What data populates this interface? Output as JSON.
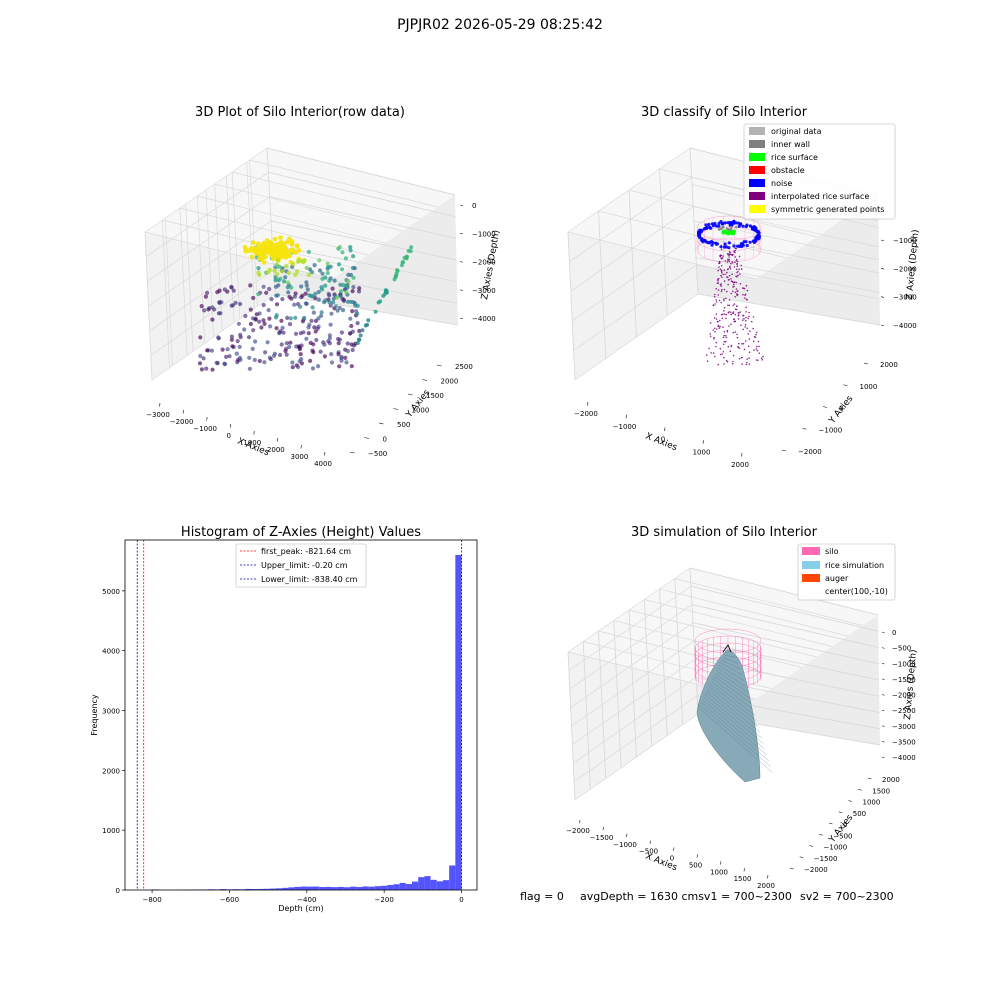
{
  "figure": {
    "title": "PJPJR02 2026-05-29 08:25:42",
    "footer": {
      "flag": "flag = 0",
      "avg": "avgDepth = 1630 cmsv1 = 700~2300",
      "sv2": "sv2 = 700~2300"
    }
  },
  "colors": {
    "hist_bar": "#4b4bff",
    "first_peak": "#ff0000",
    "limit_line": "#0000aa",
    "silo": "#ff69b4",
    "rice": "#87a9b8",
    "auger": "#ff4500",
    "noise": "#0000ff",
    "original": "#b3b3b3",
    "inner_wall": "#808080",
    "rice_surface": "#00ff00",
    "obstacle": "#ff0000",
    "interp": "#800080",
    "sym": "#ffff00"
  },
  "chart_data": [
    {
      "type": "scatter",
      "title": "3D Plot of Silo Interior(row data)",
      "xlabel": "X Axies",
      "ylabel": "Y Axies",
      "zlabel": "Z Axies (Depth)",
      "x_ticks": [
        "−3000",
        "−2000",
        "−1000",
        "0",
        "1000",
        "2000",
        "3000",
        "4000"
      ],
      "y_ticks": [
        "−500",
        "0",
        "500",
        "1000",
        "1500",
        "2000",
        "2500"
      ],
      "z_ticks": [
        "0",
        "−1000",
        "−2000",
        "−3000",
        "−4000"
      ],
      "xlim": [
        -3500,
        4500
      ],
      "ylim": [
        -700,
        2800
      ],
      "zlim": [
        -4500,
        200
      ],
      "colormap": "viridis"
    },
    {
      "type": "scatter",
      "title": "3D classify of Silo Interior",
      "xlabel": "X Axies",
      "ylabel": "Y Axies",
      "zlabel": "Z Axies (Depth)",
      "x_ticks": [
        "−2000",
        "−1000",
        "0",
        "1000",
        "2000"
      ],
      "y_ticks": [
        "−2000",
        "−1000",
        "0",
        "1000",
        "2000"
      ],
      "z_ticks": [
        "−1000",
        "−2000",
        "−3000",
        "−4000"
      ],
      "legend": [
        "original data",
        "inner wall",
        "rice surface",
        "obstacle",
        "noise",
        "interpolated rice surface",
        "symmetric generated points"
      ],
      "legend_position": "top-right"
    },
    {
      "type": "bar",
      "title": "Histogram of Z-Axies (Height) Values",
      "xlabel": "Depth (cm)",
      "ylabel": "Frequency",
      "xlim": [
        -870,
        40
      ],
      "ylim": [
        0,
        5850
      ],
      "x_ticks": [
        "−800",
        "−600",
        "−400",
        "−200",
        "0"
      ],
      "y_ticks": [
        "0",
        "1000",
        "2000",
        "3000",
        "4000",
        "5000"
      ],
      "legend": [
        "first_peak: -821.64 cm",
        "Upper_limit: -0.20 cm",
        "Lower_limit: -838.40 cm"
      ],
      "legend_position": "top-center",
      "vlines": {
        "first_peak": -821.64,
        "upper_limit": -0.2,
        "lower_limit": -838.4
      },
      "bins": [
        {
          "x": -800,
          "w": 16,
          "v": 10
        },
        {
          "x": -736,
          "w": 16,
          "v": 6
        },
        {
          "x": -720,
          "w": 16,
          "v": 6
        },
        {
          "x": -704,
          "w": 16,
          "v": 6
        },
        {
          "x": -688,
          "w": 16,
          "v": 8
        },
        {
          "x": -672,
          "w": 16,
          "v": 8
        },
        {
          "x": -656,
          "w": 16,
          "v": 12
        },
        {
          "x": -640,
          "w": 16,
          "v": 10
        },
        {
          "x": -624,
          "w": 16,
          "v": 16
        },
        {
          "x": -608,
          "w": 16,
          "v": 10
        },
        {
          "x": -592,
          "w": 16,
          "v": 14
        },
        {
          "x": -576,
          "w": 16,
          "v": 12
        },
        {
          "x": -560,
          "w": 16,
          "v": 18
        },
        {
          "x": -544,
          "w": 16,
          "v": 16
        },
        {
          "x": -528,
          "w": 16,
          "v": 18
        },
        {
          "x": -512,
          "w": 16,
          "v": 20
        },
        {
          "x": -496,
          "w": 16,
          "v": 24
        },
        {
          "x": -480,
          "w": 16,
          "v": 28
        },
        {
          "x": -464,
          "w": 16,
          "v": 36
        },
        {
          "x": -448,
          "w": 16,
          "v": 44
        },
        {
          "x": -432,
          "w": 16,
          "v": 52
        },
        {
          "x": -416,
          "w": 16,
          "v": 58
        },
        {
          "x": -400,
          "w": 16,
          "v": 56
        },
        {
          "x": -384,
          "w": 16,
          "v": 58
        },
        {
          "x": -368,
          "w": 16,
          "v": 50
        },
        {
          "x": -352,
          "w": 16,
          "v": 52
        },
        {
          "x": -336,
          "w": 16,
          "v": 48
        },
        {
          "x": -320,
          "w": 16,
          "v": 52
        },
        {
          "x": -304,
          "w": 16,
          "v": 46
        },
        {
          "x": -288,
          "w": 16,
          "v": 56
        },
        {
          "x": -272,
          "w": 16,
          "v": 50
        },
        {
          "x": -256,
          "w": 16,
          "v": 60
        },
        {
          "x": -240,
          "w": 16,
          "v": 56
        },
        {
          "x": -224,
          "w": 16,
          "v": 64
        },
        {
          "x": -208,
          "w": 16,
          "v": 70
        },
        {
          "x": -192,
          "w": 16,
          "v": 84
        },
        {
          "x": -176,
          "w": 16,
          "v": 96
        },
        {
          "x": -160,
          "w": 16,
          "v": 118
        },
        {
          "x": -144,
          "w": 16,
          "v": 100
        },
        {
          "x": -128,
          "w": 16,
          "v": 140
        },
        {
          "x": -112,
          "w": 16,
          "v": 215
        },
        {
          "x": -96,
          "w": 16,
          "v": 232
        },
        {
          "x": -80,
          "w": 16,
          "v": 170
        },
        {
          "x": -64,
          "w": 16,
          "v": 145
        },
        {
          "x": -48,
          "w": 16,
          "v": 165
        },
        {
          "x": -32,
          "w": 16,
          "v": 410
        },
        {
          "x": -16,
          "w": 16,
          "v": 5600
        }
      ]
    },
    {
      "type": "area",
      "title": "3D simulation of Silo Interior",
      "xlabel": "X Axies",
      "ylabel": "Y Axies",
      "zlabel": "Z Axies (Depth)",
      "x_ticks": [
        "−2000",
        "−1500",
        "−1000",
        "−500",
        "0",
        "500",
        "1000",
        "1500",
        "2000"
      ],
      "y_ticks": [
        "−2000",
        "−1500",
        "−1000",
        "−500",
        "0",
        "500",
        "1000",
        "1500",
        "2000"
      ],
      "z_ticks": [
        "0",
        "−500",
        "−1000",
        "−1500",
        "−2000",
        "−2500",
        "−3000",
        "−3500",
        "−4000"
      ],
      "legend": [
        "silo",
        "rice simulation",
        "auger",
        "center(100,-10)"
      ],
      "legend_position": "top-right"
    }
  ]
}
